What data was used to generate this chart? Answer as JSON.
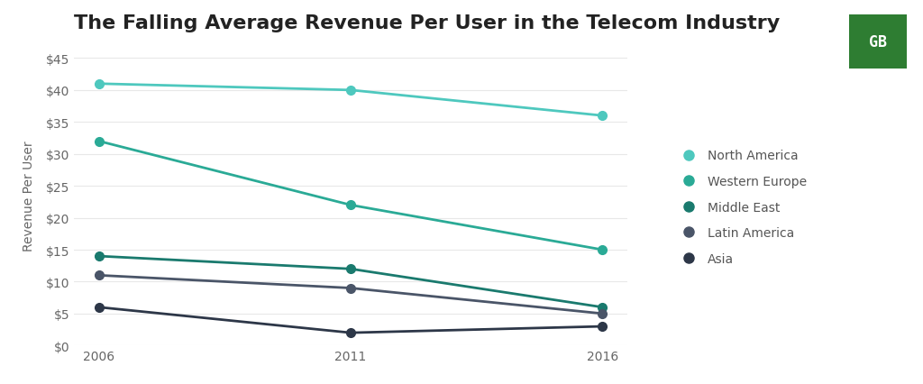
{
  "title": "The Falling Average Revenue Per User in the Telecom Industry",
  "ylabel": "Revenue Per User",
  "years": [
    2006,
    2011,
    2016
  ],
  "series": [
    {
      "name": "North America",
      "values": [
        41,
        40,
        36
      ],
      "color": "#4EC8BE",
      "linewidth": 2.0,
      "markersize": 7
    },
    {
      "name": "Western Europe",
      "values": [
        32,
        22,
        15
      ],
      "color": "#2AAA96",
      "linewidth": 2.0,
      "markersize": 7
    },
    {
      "name": "Middle East",
      "values": [
        14,
        12,
        6
      ],
      "color": "#1A7A6E",
      "linewidth": 2.0,
      "markersize": 7
    },
    {
      "name": "Latin America",
      "values": [
        11,
        9,
        5
      ],
      "color": "#4A5568",
      "linewidth": 2.0,
      "markersize": 7
    },
    {
      "name": "Asia",
      "values": [
        6,
        2,
        3
      ],
      "color": "#2D3748",
      "linewidth": 2.0,
      "markersize": 7
    }
  ],
  "ylim": [
    0,
    47
  ],
  "yticks": [
    0,
    5,
    10,
    15,
    20,
    25,
    30,
    35,
    40,
    45
  ],
  "background_color": "#ffffff",
  "grid_color": "#e8e8e8",
  "title_fontsize": 16,
  "label_fontsize": 10,
  "tick_fontsize": 10,
  "legend_fontsize": 10,
  "logo_color": "#2E7D32",
  "logo_text": "GB"
}
